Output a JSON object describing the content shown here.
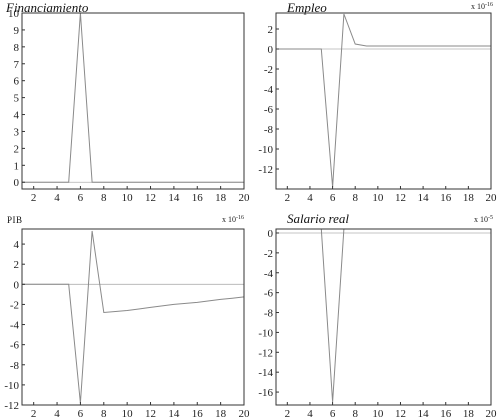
{
  "chart_data": [
    {
      "type": "line",
      "title": "Financiamiento",
      "multiplier_base": "",
      "multiplier_exp": "",
      "x": [
        1,
        2,
        3,
        4,
        5,
        6,
        7,
        8,
        9,
        10,
        11,
        12,
        13,
        14,
        15,
        16,
        17,
        18,
        19,
        20
      ],
      "values": [
        0,
        0,
        0,
        0,
        0,
        10,
        0,
        0,
        0,
        0,
        0,
        0,
        0,
        0,
        0,
        0,
        0,
        0,
        0,
        0
      ],
      "xlim": [
        1,
        20
      ],
      "ylim": [
        -0.4,
        10
      ],
      "xticks": [
        2,
        4,
        6,
        8,
        10,
        12,
        14,
        16,
        18,
        20
      ],
      "yticks": [
        0,
        1,
        2,
        3,
        4,
        5,
        6,
        7,
        8,
        9,
        10
      ],
      "ytick_labels": [
        "0",
        "1",
        "2",
        "3",
        "4",
        "5",
        "6",
        "7",
        "8",
        "9",
        "10"
      ]
    },
    {
      "type": "line",
      "title": "Empleo",
      "multiplier_base": "x 10",
      "multiplier_exp": "-16",
      "x": [
        1,
        2,
        3,
        4,
        5,
        6,
        7,
        8,
        9,
        10,
        11,
        12,
        13,
        14,
        15,
        16,
        17,
        18,
        19,
        20
      ],
      "values": [
        0,
        0,
        0,
        0,
        0,
        -13.8,
        3.5,
        0.5,
        0.3,
        0.3,
        0.3,
        0.3,
        0.3,
        0.3,
        0.3,
        0.3,
        0.3,
        0.3,
        0.3,
        0.3
      ],
      "xlim": [
        1,
        20
      ],
      "ylim": [
        -14,
        3.6
      ],
      "xticks": [
        2,
        4,
        6,
        8,
        10,
        12,
        14,
        16,
        18,
        20
      ],
      "yticks": [
        2,
        0,
        -2,
        -4,
        -6,
        -8,
        -10,
        -12
      ],
      "ytick_labels": [
        "2",
        "0",
        "-2",
        "-4",
        "-6",
        "-8",
        "-10",
        "-12"
      ]
    },
    {
      "type": "line",
      "title": "PIB",
      "multiplier_base": "x 10",
      "multiplier_exp": "-16",
      "x": [
        1,
        2,
        3,
        4,
        5,
        6,
        7,
        8,
        9,
        10,
        11,
        12,
        13,
        14,
        15,
        16,
        17,
        18,
        19,
        20
      ],
      "values": [
        0,
        0,
        0,
        0,
        0,
        -11.8,
        5.3,
        -2.8,
        -2.7,
        -2.6,
        -2.45,
        -2.3,
        -2.15,
        -2.0,
        -1.9,
        -1.8,
        -1.65,
        -1.5,
        -1.38,
        -1.25
      ],
      "xlim": [
        1,
        20
      ],
      "ylim": [
        -12,
        5.5
      ],
      "xticks": [
        2,
        4,
        6,
        8,
        10,
        12,
        14,
        16,
        18,
        20
      ],
      "yticks": [
        4,
        2,
        0,
        -2,
        -4,
        -6,
        -8,
        -10,
        -12
      ],
      "ytick_labels": [
        "4",
        "2",
        "0",
        "-2",
        "-4",
        "-6",
        "-8",
        "-10",
        "-12"
      ]
    },
    {
      "type": "line",
      "title": "Salario real",
      "multiplier_base": "x 10",
      "multiplier_exp": "-5",
      "x": [
        1,
        2,
        3,
        4,
        5,
        6,
        7,
        8,
        9,
        10,
        11,
        12,
        13,
        14,
        15,
        16,
        17,
        18,
        19,
        20
      ],
      "values": [
        0.4,
        0.4,
        0.4,
        0.4,
        0.4,
        -17,
        0.4,
        0.4,
        0.4,
        0.4,
        0.4,
        0.4,
        0.4,
        0.4,
        0.4,
        0.4,
        0.4,
        0.4,
        0.4,
        0.4
      ],
      "xlim": [
        1,
        20
      ],
      "ylim": [
        -17.3,
        0.4
      ],
      "xticks": [
        2,
        4,
        6,
        8,
        10,
        12,
        14,
        16,
        18,
        20
      ],
      "yticks": [
        0,
        -2,
        -4,
        -6,
        -8,
        -10,
        -12,
        -14,
        -16
      ],
      "ytick_labels": [
        "0",
        "-2",
        "-4",
        "-6",
        "-8",
        "-10",
        "-12",
        "-14",
        "-16"
      ]
    }
  ]
}
